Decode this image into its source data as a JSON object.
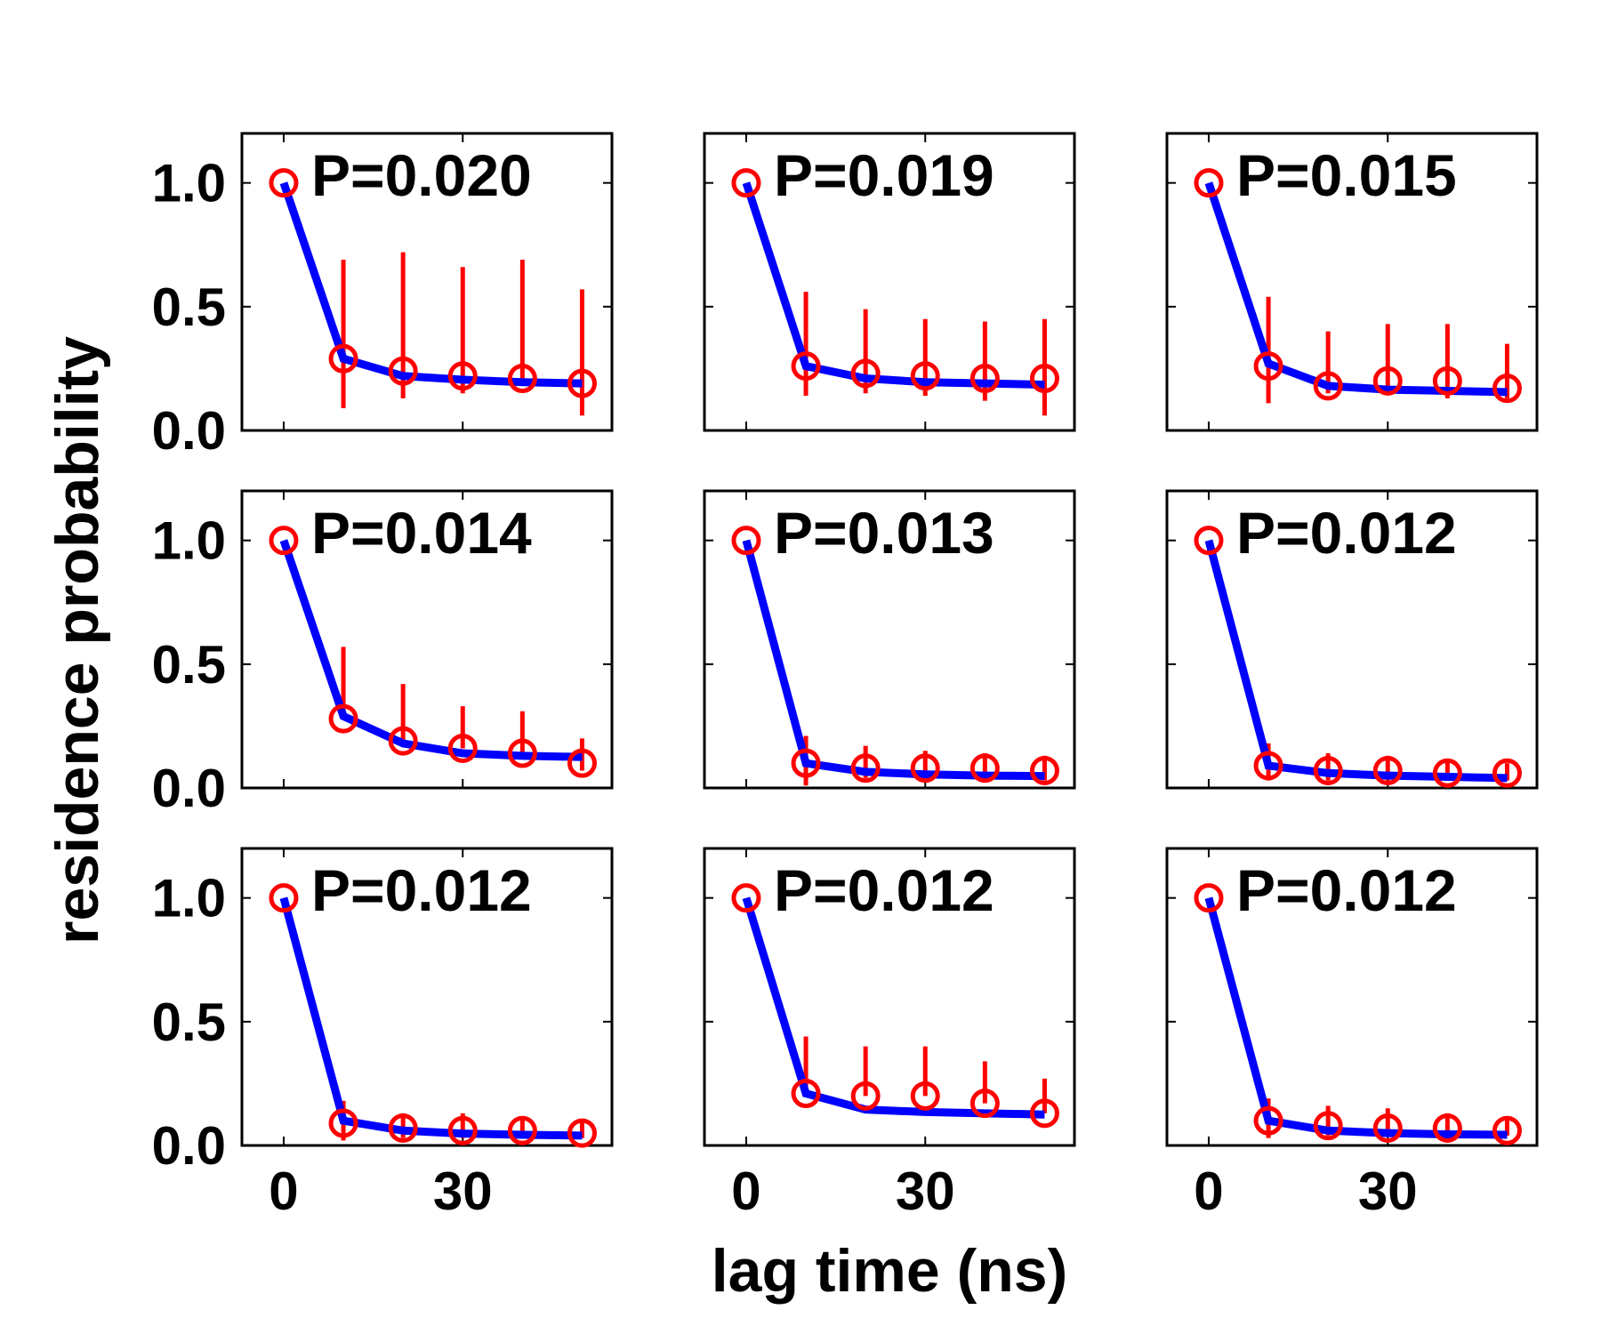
{
  "chart_data": {
    "type": "line",
    "layout": "3x3 grid of panels",
    "ylabel": "residence probability",
    "xlabel": "lag time (ns)",
    "x": [
      0,
      10,
      20,
      30,
      40,
      50
    ],
    "xlim": [
      -7,
      55
    ],
    "ylim": [
      0,
      1.2
    ],
    "x_ticks": [
      0,
      30
    ],
    "x_tick_labels": [
      "0",
      "30"
    ],
    "y_ticks": [
      0,
      0.5,
      1.0
    ],
    "y_tick_labels": [
      "0.0",
      "0.5",
      "1.0"
    ],
    "grid": false,
    "colors": {
      "markers": "#ff0000",
      "error_bars": "#ff0000",
      "fit_line": "#0000ff"
    },
    "panels": [
      {
        "label": "P=0.020",
        "points": [
          1.0,
          0.29,
          0.24,
          0.22,
          0.21,
          0.19
        ],
        "err_low": [
          1.0,
          0.09,
          0.13,
          0.15,
          0.19,
          0.06
        ],
        "err_high": [
          1.0,
          0.69,
          0.72,
          0.66,
          0.69,
          0.57
        ],
        "fit": [
          1.0,
          0.29,
          0.22,
          0.205,
          0.195,
          0.19
        ]
      },
      {
        "label": "P=0.019",
        "points": [
          1.0,
          0.26,
          0.23,
          0.22,
          0.21,
          0.21
        ],
        "err_low": [
          1.0,
          0.14,
          0.15,
          0.14,
          0.12,
          0.06
        ],
        "err_high": [
          1.0,
          0.56,
          0.49,
          0.45,
          0.44,
          0.45
        ],
        "fit": [
          1.0,
          0.26,
          0.21,
          0.195,
          0.19,
          0.185
        ]
      },
      {
        "label": "P=0.015",
        "points": [
          1.0,
          0.26,
          0.18,
          0.2,
          0.2,
          0.17
        ],
        "err_low": [
          1.0,
          0.11,
          0.15,
          0.17,
          0.13,
          0.13
        ],
        "err_high": [
          1.0,
          0.54,
          0.4,
          0.43,
          0.43,
          0.35
        ],
        "fit": [
          1.0,
          0.27,
          0.18,
          0.165,
          0.16,
          0.155
        ]
      },
      {
        "label": "P=0.014",
        "points": [
          1.0,
          0.28,
          0.19,
          0.16,
          0.14,
          0.1
        ],
        "err_low": [
          1.0,
          0.28,
          0.19,
          0.16,
          0.14,
          0.07
        ],
        "err_high": [
          1.0,
          0.57,
          0.42,
          0.33,
          0.31,
          0.2
        ],
        "fit": [
          1.0,
          0.29,
          0.18,
          0.14,
          0.13,
          0.125
        ]
      },
      {
        "label": "P=0.013",
        "points": [
          1.0,
          0.1,
          0.08,
          0.08,
          0.08,
          0.07
        ],
        "err_low": [
          1.0,
          0.01,
          0.04,
          0.04,
          0.04,
          0.03
        ],
        "err_high": [
          1.0,
          0.21,
          0.17,
          0.15,
          0.14,
          0.13
        ],
        "fit": [
          1.0,
          0.1,
          0.065,
          0.055,
          0.05,
          0.048
        ]
      },
      {
        "label": "P=0.012",
        "points": [
          1.0,
          0.09,
          0.07,
          0.07,
          0.06,
          0.06
        ],
        "err_low": [
          1.0,
          0.03,
          0.03,
          0.03,
          0.03,
          0.03
        ],
        "err_high": [
          1.0,
          0.18,
          0.14,
          0.13,
          0.11,
          0.1
        ],
        "fit": [
          1.0,
          0.09,
          0.06,
          0.05,
          0.045,
          0.04
        ]
      },
      {
        "label": "P=0.012",
        "points": [
          1.0,
          0.09,
          0.07,
          0.06,
          0.06,
          0.05
        ],
        "err_low": [
          1.0,
          0.02,
          0.03,
          0.03,
          0.03,
          0.03
        ],
        "err_high": [
          1.0,
          0.18,
          0.13,
          0.13,
          0.11,
          0.1
        ],
        "fit": [
          1.0,
          0.1,
          0.06,
          0.048,
          0.043,
          0.04
        ]
      },
      {
        "label": "P=0.012",
        "points": [
          1.0,
          0.21,
          0.2,
          0.2,
          0.17,
          0.13
        ],
        "err_low": [
          1.0,
          0.21,
          0.2,
          0.2,
          0.17,
          0.13
        ],
        "err_high": [
          1.0,
          0.44,
          0.4,
          0.4,
          0.34,
          0.27
        ],
        "fit": [
          1.0,
          0.21,
          0.145,
          0.135,
          0.13,
          0.125
        ]
      },
      {
        "label": "P=0.012",
        "points": [
          1.0,
          0.1,
          0.08,
          0.07,
          0.07,
          0.06
        ],
        "err_low": [
          1.0,
          0.03,
          0.04,
          0.04,
          0.04,
          0.04
        ],
        "err_high": [
          1.0,
          0.19,
          0.16,
          0.15,
          0.13,
          0.11
        ],
        "fit": [
          1.0,
          0.1,
          0.06,
          0.05,
          0.045,
          0.043
        ]
      }
    ]
  }
}
